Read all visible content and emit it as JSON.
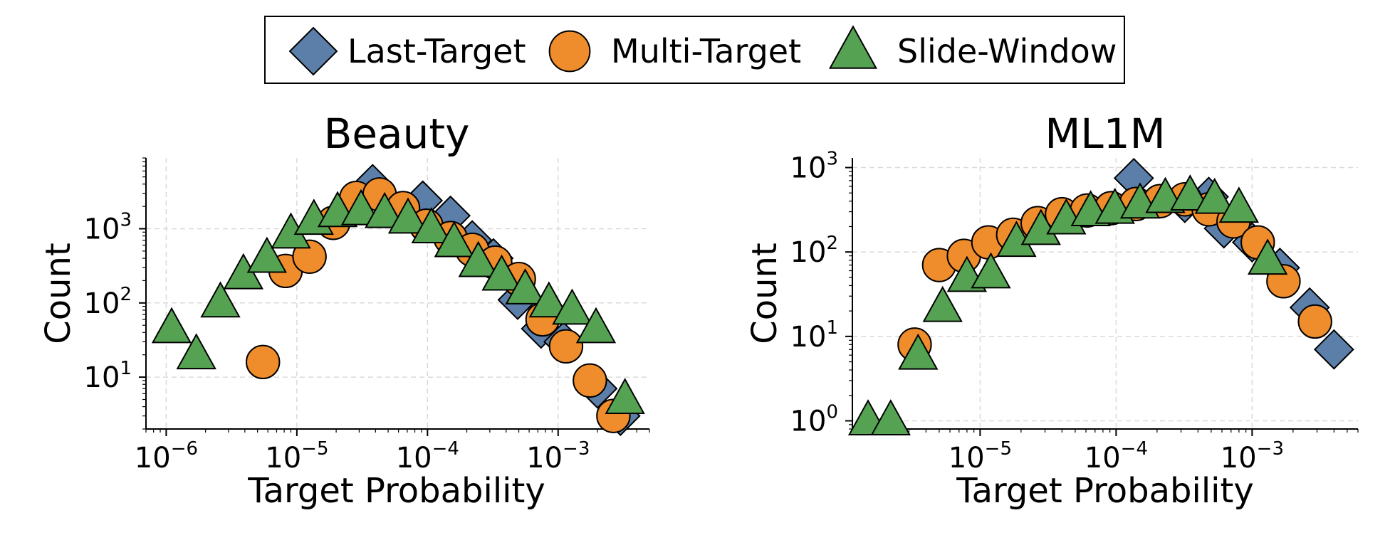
{
  "legend": {
    "entries": [
      {
        "label": "Last-Target",
        "color": "#5b7fa9",
        "marker": "diamond"
      },
      {
        "label": "Multi-Target",
        "color": "#ef8c2b",
        "marker": "circle"
      },
      {
        "label": "Slide-Window",
        "color": "#55a352",
        "marker": "triangle"
      }
    ]
  },
  "chart_data": [
    {
      "type": "scatter",
      "title": "Beauty",
      "xlabel": "Target Probability",
      "ylabel": "Count",
      "xscale": "log",
      "yscale": "log",
      "xlim": [
        7e-07,
        0.005
      ],
      "ylim": [
        2,
        9000
      ],
      "xticks": [
        {
          "value": 1e-06,
          "base": "10",
          "exp": "−6"
        },
        {
          "value": 1e-05,
          "base": "10",
          "exp": "−5"
        },
        {
          "value": 0.0001,
          "base": "10",
          "exp": "−4"
        },
        {
          "value": 0.001,
          "base": "10",
          "exp": "−3"
        }
      ],
      "yticks": [
        {
          "value": 10,
          "base": "10",
          "exp": "1"
        },
        {
          "value": 100,
          "base": "10",
          "exp": "2"
        },
        {
          "value": 1000,
          "base": "10",
          "exp": "3"
        }
      ],
      "grid": true,
      "series": [
        {
          "name": "Last-Target",
          "marker": "diamond",
          "color": "#5b7fa9",
          "x": [
            3.8e-05,
            9.2e-05,
            0.00015,
            0.00022,
            0.00032,
            0.00049,
            0.00074,
            0.0011,
            0.002,
            0.003
          ],
          "y": [
            4000,
            2400,
            1500,
            700,
            400,
            110,
            45,
            30,
            7,
            3
          ]
        },
        {
          "name": "Multi-Target",
          "marker": "circle",
          "color": "#ef8c2b",
          "x": [
            5.5e-06,
            8.2e-06,
            1.25e-05,
            1.9e-05,
            2.85e-05,
            4.3e-05,
            6.5e-05,
            9.8e-05,
            0.00015,
            0.00022,
            0.00033,
            0.0005,
            0.00076,
            0.00115,
            0.00175,
            0.00265
          ],
          "y": [
            16,
            270,
            420,
            1200,
            2600,
            2900,
            1900,
            1100,
            750,
            520,
            350,
            210,
            60,
            26,
            9,
            3
          ]
        },
        {
          "name": "Slide-Window",
          "marker": "triangle",
          "color": "#55a352",
          "x": [
            1.1e-06,
            1.7e-06,
            2.6e-06,
            3.9e-06,
            5.9e-06,
            9e-06,
            1.35e-05,
            2.05e-05,
            3.1e-05,
            4.7e-05,
            7.1e-05,
            0.000107,
            0.00016,
            0.000245,
            0.00037,
            0.00056,
            0.00085,
            0.00128,
            0.00195,
            0.00325
          ],
          "y": [
            45,
            20,
            100,
            240,
            400,
            850,
            1300,
            1650,
            1750,
            1600,
            1350,
            1000,
            650,
            350,
            230,
            150,
            100,
            80,
            45,
            5
          ]
        }
      ]
    },
    {
      "type": "scatter",
      "title": "ML1M",
      "xlabel": "Target Probability",
      "ylabel": "Count",
      "xscale": "log",
      "yscale": "log",
      "xlim": [
        1.15e-06,
        0.006
      ],
      "ylim": [
        0.8,
        1300
      ],
      "xticks": [
        {
          "value": 1e-05,
          "base": "10",
          "exp": "−5"
        },
        {
          "value": 0.0001,
          "base": "10",
          "exp": "−4"
        },
        {
          "value": 0.001,
          "base": "10",
          "exp": "−3"
        }
      ],
      "yticks": [
        {
          "value": 1,
          "base": "10",
          "exp": "0"
        },
        {
          "value": 10,
          "base": "10",
          "exp": "1"
        },
        {
          "value": 100,
          "base": "10",
          "exp": "2"
        },
        {
          "value": 1000,
          "base": "10",
          "exp": "3"
        }
      ],
      "grid": true,
      "series": [
        {
          "name": "Last-Target",
          "marker": "diamond",
          "color": "#5b7fa9",
          "x": [
            0.000135,
            0.00032,
            0.00048,
            0.00062,
            0.001,
            0.0016,
            0.00265,
            0.004
          ],
          "y": [
            750,
            380,
            450,
            190,
            130,
            65,
            22,
            7
          ]
        },
        {
          "name": "Multi-Target",
          "marker": "circle",
          "color": "#ef8c2b",
          "x": [
            3.3e-06,
            5e-06,
            7.6e-06,
            1.15e-05,
            1.75e-05,
            2.65e-05,
            4e-05,
            6.1e-05,
            9.2e-05,
            0.00014,
            0.00021,
            0.00032,
            0.00048,
            0.00073,
            0.0011,
            0.0017,
            0.0029
          ],
          "y": [
            8,
            70,
            90,
            130,
            160,
            220,
            280,
            310,
            330,
            370,
            400,
            420,
            320,
            230,
            130,
            45,
            15
          ]
        },
        {
          "name": "Slide-Window",
          "marker": "triangle",
          "color": "#55a352",
          "x": [
            1.5e-06,
            2.2e-06,
            3.5e-06,
            5.3e-06,
            8e-06,
            1.2e-05,
            1.85e-05,
            2.8e-05,
            4.3e-05,
            6.5e-05,
            9.8e-05,
            0.00015,
            0.00023,
            0.00035,
            0.00053,
            0.0008,
            0.0013
          ],
          "y": [
            1,
            1,
            6,
            22,
            50,
            55,
            130,
            180,
            240,
            300,
            320,
            370,
            430,
            460,
            420,
            330,
            80
          ]
        }
      ]
    }
  ]
}
